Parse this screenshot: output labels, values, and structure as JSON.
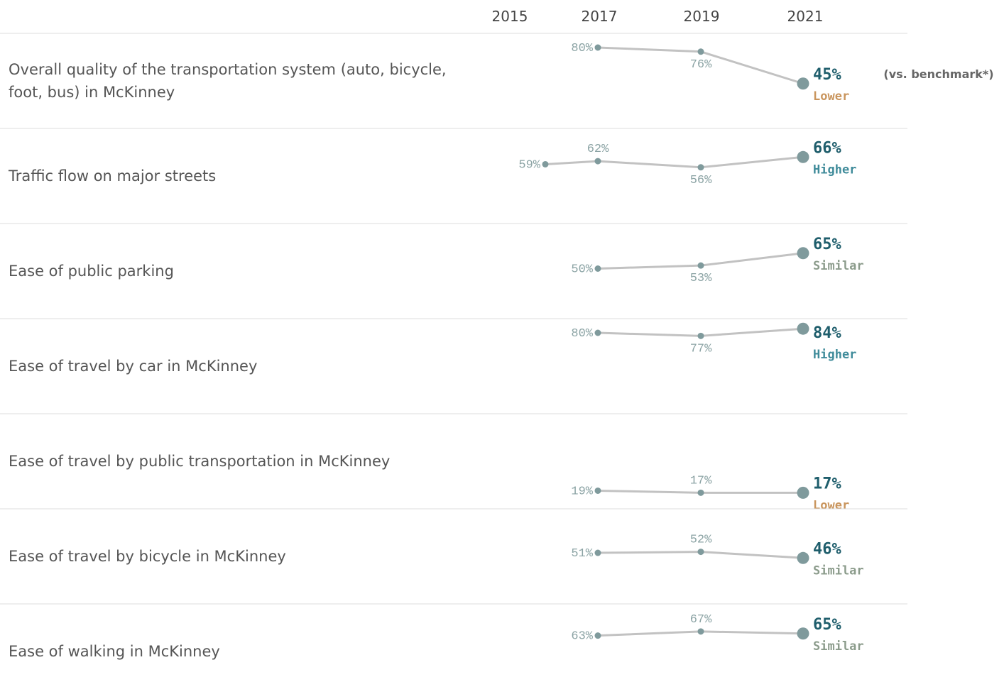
{
  "chart_data": {
    "type": "slopegraph",
    "years": [
      "2015",
      "2017",
      "2019",
      "2021"
    ],
    "ylim": [
      0,
      100
    ],
    "benchmark_note": "(vs. benchmark*)",
    "line_color": "#c2c2c2",
    "point_color": "#7f9a9c",
    "rows": [
      {
        "label": "Overall quality of the transportation system (auto, bicycle, foot, bus) in McKinney",
        "values": [
          null,
          80,
          76,
          45
        ],
        "value_labels": [
          null,
          "80%",
          "76%",
          "45%"
        ],
        "benchmark": "Lower",
        "benchmark_color": "#c9955d"
      },
      {
        "label": "Traffic flow on major streets",
        "values": [
          59,
          62,
          56,
          66
        ],
        "value_labels": [
          "59%",
          "62%",
          "56%",
          "66%"
        ],
        "benchmark": "Higher",
        "benchmark_color": "#3f8b9a"
      },
      {
        "label": "Ease of public parking",
        "values": [
          null,
          50,
          53,
          65
        ],
        "value_labels": [
          null,
          "50%",
          "53%",
          "65%"
        ],
        "benchmark": "Similar",
        "benchmark_color": "#8c9c8c"
      },
      {
        "label": "Ease of travel by car in McKinney",
        "values": [
          null,
          80,
          77,
          84
        ],
        "value_labels": [
          null,
          "80%",
          "77%",
          "84%"
        ],
        "benchmark": "Higher",
        "benchmark_color": "#3f8b9a"
      },
      {
        "label": "Ease of travel by public transportation in McKinney",
        "values": [
          null,
          19,
          17,
          17
        ],
        "value_labels": [
          null,
          "19%",
          "17%",
          "17%"
        ],
        "benchmark": "Lower",
        "benchmark_color": "#c9955d"
      },
      {
        "label": "Ease of travel by bicycle in McKinney",
        "values": [
          null,
          51,
          52,
          46
        ],
        "value_labels": [
          null,
          "51%",
          "52%",
          "46%"
        ],
        "benchmark": "Similar",
        "benchmark_color": "#8c9c8c"
      },
      {
        "label": "Ease of walking in McKinney",
        "values": [
          null,
          63,
          67,
          65
        ],
        "value_labels": [
          null,
          "63%",
          "67%",
          "65%"
        ],
        "benchmark": "Similar",
        "benchmark_color": "#8c9c8c"
      }
    ]
  }
}
